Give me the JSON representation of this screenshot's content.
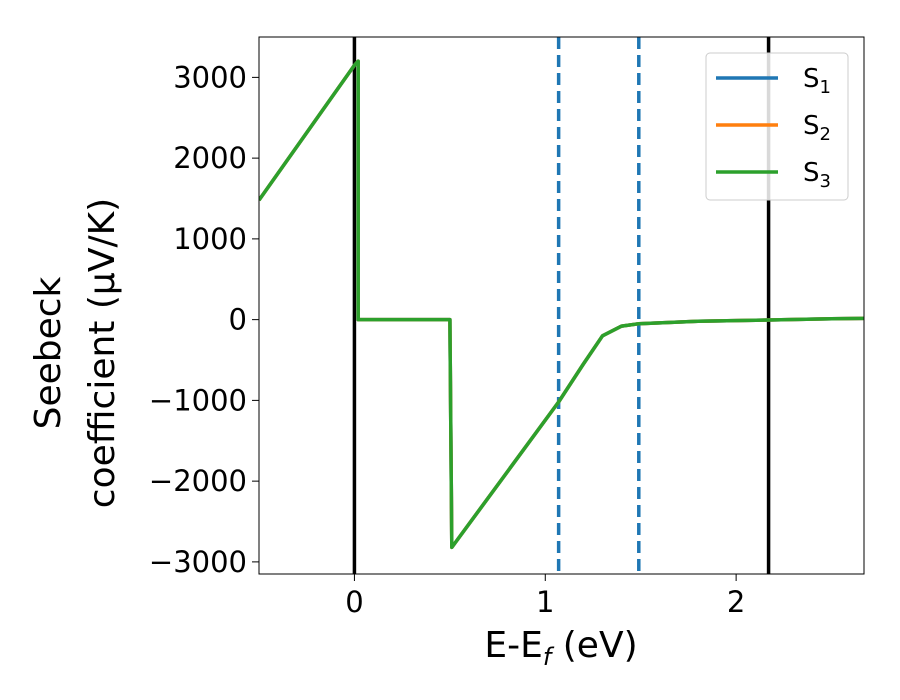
{
  "chart_data": {
    "type": "line",
    "xlabel": "E-E",
    "xlabel_sub": "f",
    "xlabel_unit": " (eV)",
    "ylabel_line1": "Seebeck",
    "ylabel_line2": "coefficient  (μV/K)",
    "xlim": [
      -0.5,
      2.67
    ],
    "ylim": [
      -3150,
      3500
    ],
    "xticks": [
      0,
      1,
      2
    ],
    "xtick_labels": [
      "0",
      "1",
      "2"
    ],
    "yticks": [
      3000,
      2000,
      1000,
      0,
      -1000,
      -2000,
      -3000
    ],
    "ytick_labels": [
      "3000",
      "2000",
      "1000",
      "0",
      "−1000",
      "−2000",
      "−3000"
    ],
    "grid": false,
    "legend_position": "top-right",
    "vlines": [
      {
        "x": 0,
        "style": "solid",
        "color": "#000000"
      },
      {
        "x": 2.17,
        "style": "solid",
        "color": "#000000"
      },
      {
        "x": 1.07,
        "style": "dashed",
        "color": "#1f77b4"
      },
      {
        "x": 1.49,
        "style": "dashed",
        "color": "#1f77b4"
      }
    ],
    "series": [
      {
        "name": "S",
        "sub": "1",
        "color": "#1f77b4",
        "x": [
          -0.5,
          0.0,
          0.02,
          0.02,
          0.03,
          0.5,
          0.51,
          1.07,
          1.2,
          1.3,
          1.4,
          1.49,
          1.8,
          2.17,
          2.5,
          2.67
        ],
        "y": [
          1480,
          3150,
          3200,
          0,
          0,
          0,
          -2820,
          -1020,
          -550,
          -200,
          -80,
          -50,
          -20,
          -5,
          10,
          15
        ]
      },
      {
        "name": "S",
        "sub": "2",
        "color": "#ff7f0e",
        "x": [
          -0.5,
          0.0,
          0.02,
          0.02,
          0.03,
          0.5,
          0.51,
          1.07,
          1.2,
          1.3,
          1.4,
          1.49,
          1.8,
          2.17,
          2.5,
          2.67
        ],
        "y": [
          1480,
          3150,
          3200,
          0,
          0,
          0,
          -2820,
          -1020,
          -550,
          -200,
          -80,
          -50,
          -20,
          -5,
          10,
          15
        ]
      },
      {
        "name": "S",
        "sub": "3",
        "color": "#2ca02c",
        "x": [
          -0.5,
          0.0,
          0.02,
          0.02,
          0.03,
          0.5,
          0.51,
          1.07,
          1.2,
          1.3,
          1.4,
          1.49,
          1.8,
          2.17,
          2.5,
          2.67
        ],
        "y": [
          1480,
          3150,
          3200,
          0,
          0,
          0,
          -2820,
          -1020,
          -550,
          -200,
          -80,
          -50,
          -20,
          -5,
          10,
          15
        ]
      }
    ]
  }
}
